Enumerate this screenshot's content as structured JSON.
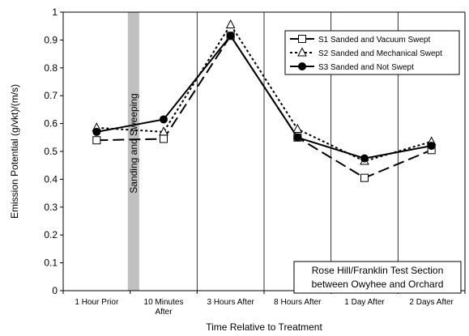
{
  "chart_data": {
    "type": "line",
    "title": "",
    "xlabel": "Time Relative to Treatment",
    "ylabel": "Emission Potential (g/vkt)/(m/s)",
    "ylim": [
      0,
      1
    ],
    "yticks": [
      "0",
      "0.1",
      "0.2",
      "0.3",
      "0.4",
      "0.5",
      "0.6",
      "0.7",
      "0.8",
      "0.9",
      "1"
    ],
    "categories": [
      {
        "line1": "1 Hour Prior",
        "line2": ""
      },
      {
        "line1": "10 Minutes",
        "line2": "After"
      },
      {
        "line1": "3 Hours After",
        "line2": ""
      },
      {
        "line1": "8 Hours After",
        "line2": ""
      },
      {
        "line1": "1 Day After",
        "line2": ""
      },
      {
        "line1": "2 Days After",
        "line2": ""
      }
    ],
    "grid": "vertical",
    "legend_position": "top-right",
    "series": [
      {
        "name": "S1 Sanded and Vacuum Swept",
        "marker": "open-square",
        "line": "long-dash",
        "values": [
          0.54,
          0.545,
          0.915,
          0.55,
          0.405,
          0.505
        ]
      },
      {
        "name": "S2 Sanded and Mechanical Swept",
        "marker": "open-triangle",
        "line": "short-dash",
        "values": [
          0.585,
          0.57,
          0.955,
          0.58,
          0.465,
          0.535
        ]
      },
      {
        "name": "S3 Sanded and Not Swept",
        "marker": "filled-circle",
        "line": "solid",
        "values": [
          0.57,
          0.615,
          0.915,
          0.55,
          0.475,
          0.52
        ]
      }
    ],
    "annotations": {
      "treatment_band_label": "Sanding and Sweeping",
      "treatment_band_color": "#c0c0c0",
      "section_note_line1": "Rose Hill/Franklin Test Section",
      "section_note_line2": "between Owyhee and Orchard"
    }
  }
}
